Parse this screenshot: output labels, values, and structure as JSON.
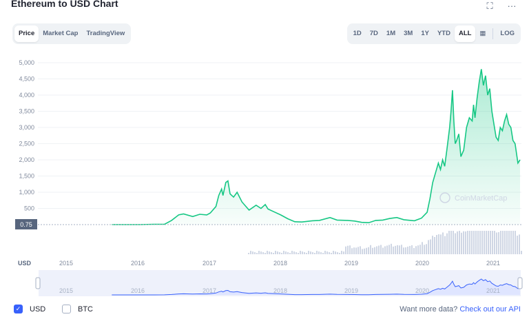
{
  "header": {
    "title": "Ethereum to USD Chart",
    "fullscreen_icon": "expand-icon",
    "more_icon": "more-dots-icon",
    "fullscreen_glyph": "⛶",
    "more_glyph": "···"
  },
  "chart_tabs": [
    {
      "label": "Price",
      "active": true
    },
    {
      "label": "Market Cap",
      "active": false
    },
    {
      "label": "TradingView",
      "active": false
    }
  ],
  "range_buttons": [
    {
      "label": "1D",
      "active": false
    },
    {
      "label": "7D",
      "active": false
    },
    {
      "label": "1M",
      "active": false
    },
    {
      "label": "3M",
      "active": false
    },
    {
      "label": "1Y",
      "active": false
    },
    {
      "label": "YTD",
      "active": false
    },
    {
      "label": "ALL",
      "active": true
    }
  ],
  "calendar_icon": "calendar-icon",
  "log_label": "LOG",
  "colors": {
    "line": "#16c784",
    "fill_top": "#16c784",
    "volume": "#cfd6e4",
    "navigator_fill": "#dfe5ff",
    "navigator_line": "#3861fb",
    "grid": "#eff2f5",
    "axis_text": "#808a9d"
  },
  "chart_data": {
    "type": "area",
    "title": "Ethereum to USD Chart",
    "ylabel": "",
    "xlabel": "",
    "y_ticks": [
      500,
      1000,
      1500,
      2000,
      2500,
      3000,
      3500,
      4000,
      4500,
      5000
    ],
    "ylim": [
      -1000,
      5200
    ],
    "x_ticks": [
      "2015",
      "2016",
      "2017",
      "2018",
      "2019",
      "2020",
      "2021"
    ],
    "current_price_label": "0.75",
    "currency_label": "USD",
    "grid": true,
    "watermark": "CoinMarketCap",
    "series": [
      {
        "values": [
          [
            2015.6,
            0.75
          ],
          [
            2015.8,
            1
          ],
          [
            2016.0,
            1
          ],
          [
            2016.2,
            10
          ],
          [
            2016.35,
            12
          ],
          [
            2016.45,
            130
          ],
          [
            2016.55,
            300
          ],
          [
            2016.62,
            330
          ],
          [
            2016.75,
            250
          ],
          [
            2016.85,
            320
          ],
          [
            2016.95,
            300
          ],
          [
            2017.0,
            360
          ],
          [
            2017.08,
            560
          ],
          [
            2017.12,
            900
          ],
          [
            2017.16,
            1100
          ],
          [
            2017.18,
            900
          ],
          [
            2017.22,
            1300
          ],
          [
            2017.25,
            1350
          ],
          [
            2017.28,
            950
          ],
          [
            2017.33,
            850
          ],
          [
            2017.38,
            1000
          ],
          [
            2017.45,
            700
          ],
          [
            2017.55,
            450
          ],
          [
            2017.65,
            600
          ],
          [
            2017.72,
            500
          ],
          [
            2017.78,
            620
          ],
          [
            2017.82,
            480
          ],
          [
            2017.9,
            400
          ],
          [
            2018.0,
            300
          ],
          [
            2018.1,
            180
          ],
          [
            2018.2,
            90
          ],
          [
            2018.3,
            80
          ],
          [
            2018.45,
            120
          ],
          [
            2018.55,
            130
          ],
          [
            2018.7,
            220
          ],
          [
            2018.8,
            140
          ],
          [
            2018.95,
            130
          ],
          [
            2019.05,
            110
          ],
          [
            2019.15,
            70
          ],
          [
            2019.25,
            60
          ],
          [
            2019.35,
            130
          ],
          [
            2019.45,
            140
          ],
          [
            2019.55,
            190
          ],
          [
            2019.65,
            220
          ],
          [
            2019.75,
            150
          ],
          [
            2019.9,
            120
          ],
          [
            2020.0,
            200
          ],
          [
            2020.08,
            380
          ],
          [
            2020.12,
            800
          ],
          [
            2020.16,
            1300
          ],
          [
            2020.2,
            1600
          ],
          [
            2020.24,
            1900
          ],
          [
            2020.27,
            1700
          ],
          [
            2020.3,
            2000
          ],
          [
            2020.33,
            1800
          ],
          [
            2020.36,
            2300
          ],
          [
            2020.4,
            3000
          ],
          [
            2020.42,
            3500
          ],
          [
            2020.44,
            4150
          ],
          [
            2020.46,
            3200
          ],
          [
            2020.48,
            2500
          ],
          [
            2020.5,
            2600
          ],
          [
            2020.53,
            2800
          ],
          [
            2020.56,
            2100
          ],
          [
            2020.6,
            2300
          ],
          [
            2020.64,
            3000
          ],
          [
            2020.68,
            3300
          ],
          [
            2020.72,
            3200
          ],
          [
            2020.74,
            3700
          ],
          [
            2020.76,
            3300
          ],
          [
            2020.79,
            3900
          ],
          [
            2020.82,
            4400
          ],
          [
            2020.85,
            4800
          ],
          [
            2020.88,
            4300
          ],
          [
            2020.91,
            4600
          ],
          [
            2020.94,
            4000
          ],
          [
            2020.97,
            4200
          ],
          [
            2021.0,
            3500
          ],
          [
            2021.03,
            3100
          ],
          [
            2021.06,
            2700
          ],
          [
            2021.09,
            2600
          ],
          [
            2021.12,
            3000
          ],
          [
            2021.15,
            2900
          ],
          [
            2021.18,
            3200
          ],
          [
            2021.21,
            3400
          ],
          [
            2021.24,
            3100
          ],
          [
            2021.27,
            3000
          ],
          [
            2021.3,
            2600
          ],
          [
            2021.33,
            2500
          ],
          [
            2021.37,
            1900
          ],
          [
            2021.4,
            2000
          ]
        ]
      }
    ]
  },
  "navigator": {
    "x_ticks": [
      "2015",
      "2016",
      "2017",
      "2018",
      "2019",
      "2020",
      "2021"
    ]
  },
  "footer": {
    "usd_label": "USD",
    "btc_label": "BTC",
    "usd_checked": true,
    "btc_checked": false,
    "api_prefix": "Want more data? ",
    "api_link": "Check out our API"
  }
}
